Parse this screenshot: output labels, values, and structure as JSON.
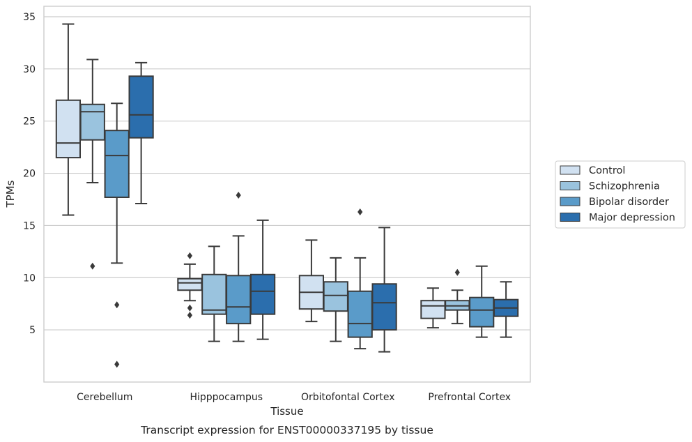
{
  "chart_data": {
    "type": "box",
    "caption": "Transcript expression for ENST00000337195 by tissue",
    "xlabel": "Tissue",
    "ylabel": "TPMs",
    "ylim": [
      0,
      36
    ],
    "yticks": [
      5,
      10,
      15,
      20,
      25,
      30,
      35
    ],
    "grid": "horizontal",
    "legend_position": "right",
    "categories": [
      "Cerebellum",
      "Hipppocampus",
      "Orbitofontal Cortex",
      "Prefrontal Cortex"
    ],
    "series": [
      {
        "name": "Control",
        "color": "#d1e1f1",
        "boxes": [
          {
            "min": 16.0,
            "q1": 21.5,
            "median": 22.9,
            "q3": 27.0,
            "max": 34.3,
            "outliers": []
          },
          {
            "min": 7.8,
            "q1": 8.8,
            "median": 9.5,
            "q3": 9.9,
            "max": 11.3,
            "outliers": [
              12.1,
              7.1,
              6.4
            ]
          },
          {
            "min": 5.8,
            "q1": 7.0,
            "median": 8.6,
            "q3": 10.2,
            "max": 13.6,
            "outliers": []
          },
          {
            "min": 5.2,
            "q1": 6.1,
            "median": 7.3,
            "q3": 7.8,
            "max": 9.0,
            "outliers": []
          }
        ]
      },
      {
        "name": "Schizophrenia",
        "color": "#9ac3de",
        "boxes": [
          {
            "min": 19.1,
            "q1": 23.2,
            "median": 25.9,
            "q3": 26.6,
            "max": 30.9,
            "outliers": [
              11.1
            ]
          },
          {
            "min": 3.9,
            "q1": 6.5,
            "median": 6.9,
            "q3": 10.3,
            "max": 13.0,
            "outliers": []
          },
          {
            "min": 3.9,
            "q1": 6.8,
            "median": 8.3,
            "q3": 9.6,
            "max": 11.9,
            "outliers": []
          },
          {
            "min": 5.6,
            "q1": 6.9,
            "median": 7.3,
            "q3": 7.8,
            "max": 8.8,
            "outliers": [
              10.5
            ]
          }
        ]
      },
      {
        "name": "Bipolar disorder",
        "color": "#5a9bc9",
        "boxes": [
          {
            "min": 11.4,
            "q1": 17.7,
            "median": 21.7,
            "q3": 24.1,
            "max": 26.7,
            "outliers": [
              7.4,
              1.7
            ]
          },
          {
            "min": 3.9,
            "q1": 5.6,
            "median": 7.2,
            "q3": 10.2,
            "max": 14.0,
            "outliers": [
              17.9
            ]
          },
          {
            "min": 3.2,
            "q1": 4.3,
            "median": 5.6,
            "q3": 8.7,
            "max": 11.9,
            "outliers": [
              16.3
            ]
          },
          {
            "min": 4.3,
            "q1": 5.3,
            "median": 6.9,
            "q3": 8.1,
            "max": 11.1,
            "outliers": []
          }
        ]
      },
      {
        "name": "Major depression",
        "color": "#2b6ead",
        "boxes": [
          {
            "min": 17.1,
            "q1": 23.4,
            "median": 25.6,
            "q3": 29.3,
            "max": 30.6,
            "outliers": []
          },
          {
            "min": 4.1,
            "q1": 6.5,
            "median": 8.7,
            "q3": 10.3,
            "max": 15.5,
            "outliers": []
          },
          {
            "min": 2.9,
            "q1": 5.0,
            "median": 7.6,
            "q3": 9.4,
            "max": 14.8,
            "outliers": []
          },
          {
            "min": 4.3,
            "q1": 6.3,
            "median": 7.1,
            "q3": 7.9,
            "max": 9.6,
            "outliers": []
          }
        ]
      }
    ]
  }
}
